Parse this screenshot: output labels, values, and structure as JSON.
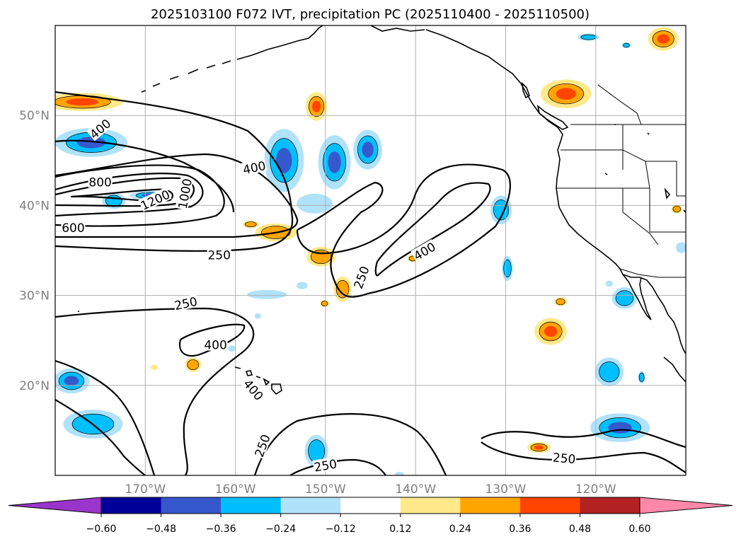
{
  "figure": {
    "title": "2025103100 F072 IVT, precipitation PC (2025110400 - 2025110500)"
  },
  "chart_data": {
    "type": "contour-map",
    "projection": "PlateCarree",
    "extent": {
      "lon": [
        -180,
        -110
      ],
      "lat": [
        10,
        60
      ]
    },
    "x_axis": {
      "ticks": [
        -170,
        -160,
        -150,
        -140,
        -130,
        -120
      ],
      "labels": [
        "170°W",
        "160°W",
        "150°W",
        "140°W",
        "130°W",
        "120°W"
      ]
    },
    "y_axis": {
      "ticks": [
        20,
        30,
        40,
        50
      ],
      "labels": [
        "20°N",
        "30°N",
        "40°N",
        "50°N"
      ]
    },
    "grid": true,
    "contour_variable": "IVT",
    "contour_levels": [
      250,
      400,
      600,
      800,
      1000,
      1200
    ],
    "contour_labels": [
      {
        "text": "400",
        "lon": -175,
        "lat": 48.5,
        "rot": -40
      },
      {
        "text": "400",
        "lon": -157.9,
        "lat": 44.2,
        "rot": -12
      },
      {
        "text": "800",
        "lon": -175,
        "lat": 42.6,
        "rot": 0
      },
      {
        "text": "1200",
        "lon": -168.9,
        "lat": 40.6,
        "rot": -25
      },
      {
        "text": "1000",
        "lon": -165.6,
        "lat": 41.3,
        "rot": -80
      },
      {
        "text": "600",
        "lon": -178,
        "lat": 37.5,
        "rot": 0
      },
      {
        "text": "250",
        "lon": -161.8,
        "lat": 34.5,
        "rot": 0
      },
      {
        "text": "400",
        "lon": -139,
        "lat": 34.9,
        "rot": -30
      },
      {
        "text": "250",
        "lon": -146,
        "lat": 32,
        "rot": -70
      },
      {
        "text": "250",
        "lon": -165.5,
        "lat": 29.1,
        "rot": -12
      },
      {
        "text": "400",
        "lon": -162.2,
        "lat": 24.5,
        "rot": 0
      },
      {
        "text": "400",
        "lon": -158,
        "lat": 19.5,
        "rot": 50
      },
      {
        "text": "250",
        "lon": -157,
        "lat": 13.3,
        "rot": -70
      },
      {
        "text": "250",
        "lon": -150,
        "lat": 11.1,
        "rot": -10
      },
      {
        "text": "250",
        "lon": -123.5,
        "lat": 11.9,
        "rot": 5
      }
    ],
    "colorbar": {
      "variable": "precipitation PC",
      "boundaries": [
        -0.6,
        -0.48,
        -0.36,
        -0.24,
        -0.12,
        0.12,
        0.24,
        0.36,
        0.48,
        0.6
      ],
      "tick_labels": [
        "−0.60",
        "−0.48",
        "−0.36",
        "−0.24",
        "−0.12",
        "0.12",
        "0.24",
        "0.36",
        "0.48",
        "0.60"
      ],
      "colors": [
        "#9a35cc",
        "#000099",
        "#3558cc",
        "#00bfff",
        "#b0e2fa",
        "#ffffff",
        "#ffe98a",
        "#ffa500",
        "#ff4500",
        "#b22222",
        "#ff88aa"
      ],
      "extend": "both"
    },
    "precip_blobs": [
      {
        "lon": -177,
        "lat": 51.5,
        "rx": 4.5,
        "ry": 1,
        "level": 0.4
      },
      {
        "lon": -176,
        "lat": 47,
        "rx": 4,
        "ry": 1.6,
        "level": -0.4
      },
      {
        "lon": -173.5,
        "lat": 40.5,
        "rx": 1.3,
        "ry": 0.9,
        "level": -0.3
      },
      {
        "lon": -169.5,
        "lat": 41.1,
        "rx": 2.2,
        "ry": 0.5,
        "level": -0.4
      },
      {
        "lon": -151,
        "lat": 51,
        "rx": 1.2,
        "ry": 1.6,
        "level": 0.4
      },
      {
        "lon": -154.6,
        "lat": 45,
        "rx": 2.2,
        "ry": 3.5,
        "level": -0.4
      },
      {
        "lon": -149,
        "lat": 44.8,
        "rx": 1.8,
        "ry": 3,
        "level": -0.4
      },
      {
        "lon": -145.3,
        "lat": 46.2,
        "rx": 1.6,
        "ry": 2.2,
        "level": -0.4
      },
      {
        "lon": -151.2,
        "lat": 40.2,
        "rx": 2,
        "ry": 1.1,
        "level": -0.2
      },
      {
        "lon": -155.5,
        "lat": 37,
        "rx": 2.3,
        "ry": 1,
        "level": 0.3
      },
      {
        "lon": -158.3,
        "lat": 37.9,
        "rx": 0.9,
        "ry": 0.4,
        "level": 0.3
      },
      {
        "lon": -150.5,
        "lat": 34.3,
        "rx": 1.6,
        "ry": 1.1,
        "level": 0.3
      },
      {
        "lon": -148.1,
        "lat": 30.7,
        "rx": 1,
        "ry": 1.4,
        "level": 0.35
      },
      {
        "lon": -150.1,
        "lat": 29.1,
        "rx": 0.5,
        "ry": 0.4,
        "level": 0.3
      },
      {
        "lon": -156.5,
        "lat": 30.1,
        "rx": 2.2,
        "ry": 0.5,
        "level": -0.15
      },
      {
        "lon": -164.7,
        "lat": 22.3,
        "rx": 0.9,
        "ry": 0.8,
        "level": 0.3
      },
      {
        "lon": -169,
        "lat": 22,
        "rx": 0.4,
        "ry": 0.3,
        "level": 0.2
      },
      {
        "lon": -158.4,
        "lat": 20.1,
        "rx": 0.7,
        "ry": 0.5,
        "level": -0.2
      },
      {
        "lon": -178.2,
        "lat": 20.5,
        "rx": 2,
        "ry": 1.4,
        "level": -0.4
      },
      {
        "lon": -175.8,
        "lat": 15.7,
        "rx": 3.3,
        "ry": 1.6,
        "level": -0.35
      },
      {
        "lon": -151,
        "lat": 12.7,
        "rx": 1.3,
        "ry": 1.8,
        "level": -0.25
      },
      {
        "lon": -130.5,
        "lat": 39.5,
        "rx": 1.2,
        "ry": 1.6,
        "level": -0.3
      },
      {
        "lon": -129.8,
        "lat": 33,
        "rx": 0.6,
        "ry": 1.4,
        "level": -0.3
      },
      {
        "lon": -125,
        "lat": 26,
        "rx": 1.8,
        "ry": 1.5,
        "level": 0.4
      },
      {
        "lon": -123.9,
        "lat": 29.3,
        "rx": 0.7,
        "ry": 0.5,
        "level": 0.3
      },
      {
        "lon": -123.3,
        "lat": 52.4,
        "rx": 2.8,
        "ry": 1.6,
        "level": 0.45
      },
      {
        "lon": -112.5,
        "lat": 58.5,
        "rx": 1.7,
        "ry": 1.3,
        "level": 0.45
      },
      {
        "lon": -120.8,
        "lat": 58.7,
        "rx": 1.2,
        "ry": 0.4,
        "level": -0.3
      },
      {
        "lon": -116.6,
        "lat": 57.8,
        "rx": 0.5,
        "ry": 0.3,
        "level": -0.25
      },
      {
        "lon": -118.5,
        "lat": 21.5,
        "rx": 1.6,
        "ry": 1.6,
        "level": -0.3
      },
      {
        "lon": -114.9,
        "lat": 20.9,
        "rx": 0.4,
        "ry": 0.7,
        "level": -0.25
      },
      {
        "lon": -117.3,
        "lat": 15.3,
        "rx": 3.3,
        "ry": 1.6,
        "level": -0.45
      },
      {
        "lon": -126.3,
        "lat": 13.1,
        "rx": 1.3,
        "ry": 0.6,
        "level": 0.4
      },
      {
        "lon": -116.8,
        "lat": 29.7,
        "rx": 1.4,
        "ry": 1.2,
        "level": -0.3
      },
      {
        "lon": -110.5,
        "lat": 35.3,
        "rx": 0.6,
        "ry": 0.6,
        "level": -0.2
      },
      {
        "lon": -111,
        "lat": 39.6,
        "rx": 0.6,
        "ry": 0.5,
        "level": 0.25
      },
      {
        "lon": -140.3,
        "lat": 34.1,
        "rx": 0.6,
        "ry": 0.4,
        "level": 0.25
      },
      {
        "lon": -152.6,
        "lat": 31.1,
        "rx": 0.6,
        "ry": 0.4,
        "level": -0.2
      },
      {
        "lon": -160.4,
        "lat": 24.1,
        "rx": 0.4,
        "ry": 0.35,
        "level": -0.2
      },
      {
        "lon": -157.5,
        "lat": 27.7,
        "rx": 0.35,
        "ry": 0.3,
        "level": -0.15
      },
      {
        "lon": -118.5,
        "lat": 31.3,
        "rx": 0.4,
        "ry": 0.35,
        "level": -0.15
      },
      {
        "lon": -141.8,
        "lat": 10.1,
        "rx": 0.5,
        "ry": 0.3,
        "level": -0.15
      }
    ]
  }
}
